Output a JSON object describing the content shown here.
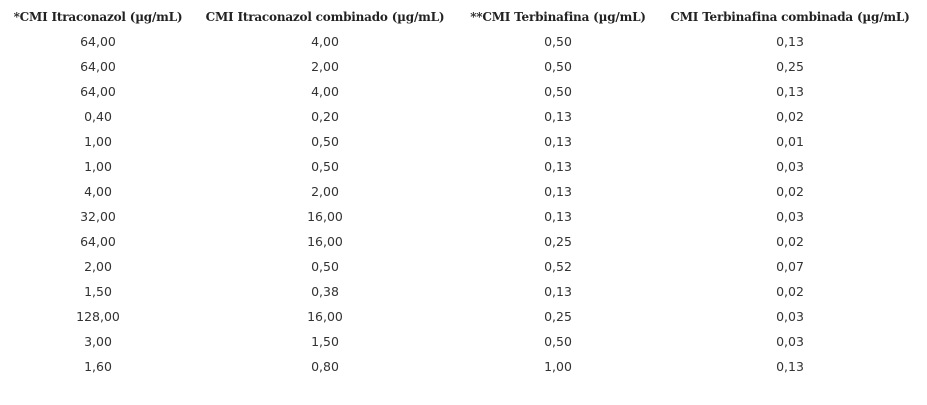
{
  "table": {
    "header": [
      "*CMI Itraconazol (µg/mL)",
      "CMI Itraconazol combinado (µg/mL)",
      "**CMI Terbinafina (µg/mL)",
      "CMI Terbinafina combinada (µg/mL)"
    ],
    "rows": [
      [
        "64,00",
        "4,00",
        "0,50",
        "0,13"
      ],
      [
        "64,00",
        "2,00",
        "0,50",
        "0,25"
      ],
      [
        "64,00",
        "4,00",
        "0,50",
        "0,13"
      ],
      [
        "0,40",
        "0,20",
        "0,13",
        "0,02"
      ],
      [
        "1,00",
        "0,50",
        "0,13",
        "0,01"
      ],
      [
        "1,00",
        "0,50",
        "0,13",
        "0,03"
      ],
      [
        "4,00",
        "2,00",
        "0,13",
        "0,02"
      ],
      [
        "32,00",
        "16,00",
        "0,13",
        "0,03"
      ],
      [
        "64,00",
        "16,00",
        "0,25",
        "0,02"
      ],
      [
        "2,00",
        "0,50",
        "0,52",
        "0,07"
      ],
      [
        "1,50",
        "0,38",
        "0,13",
        "0,02"
      ],
      [
        "128,00",
        "16,00",
        "0,25",
        "0,03"
      ],
      [
        "3,00",
        "1,50",
        "0,50",
        "0,03"
      ],
      [
        "1,60",
        "0,80",
        "1,00",
        "0,13"
      ]
    ]
  }
}
